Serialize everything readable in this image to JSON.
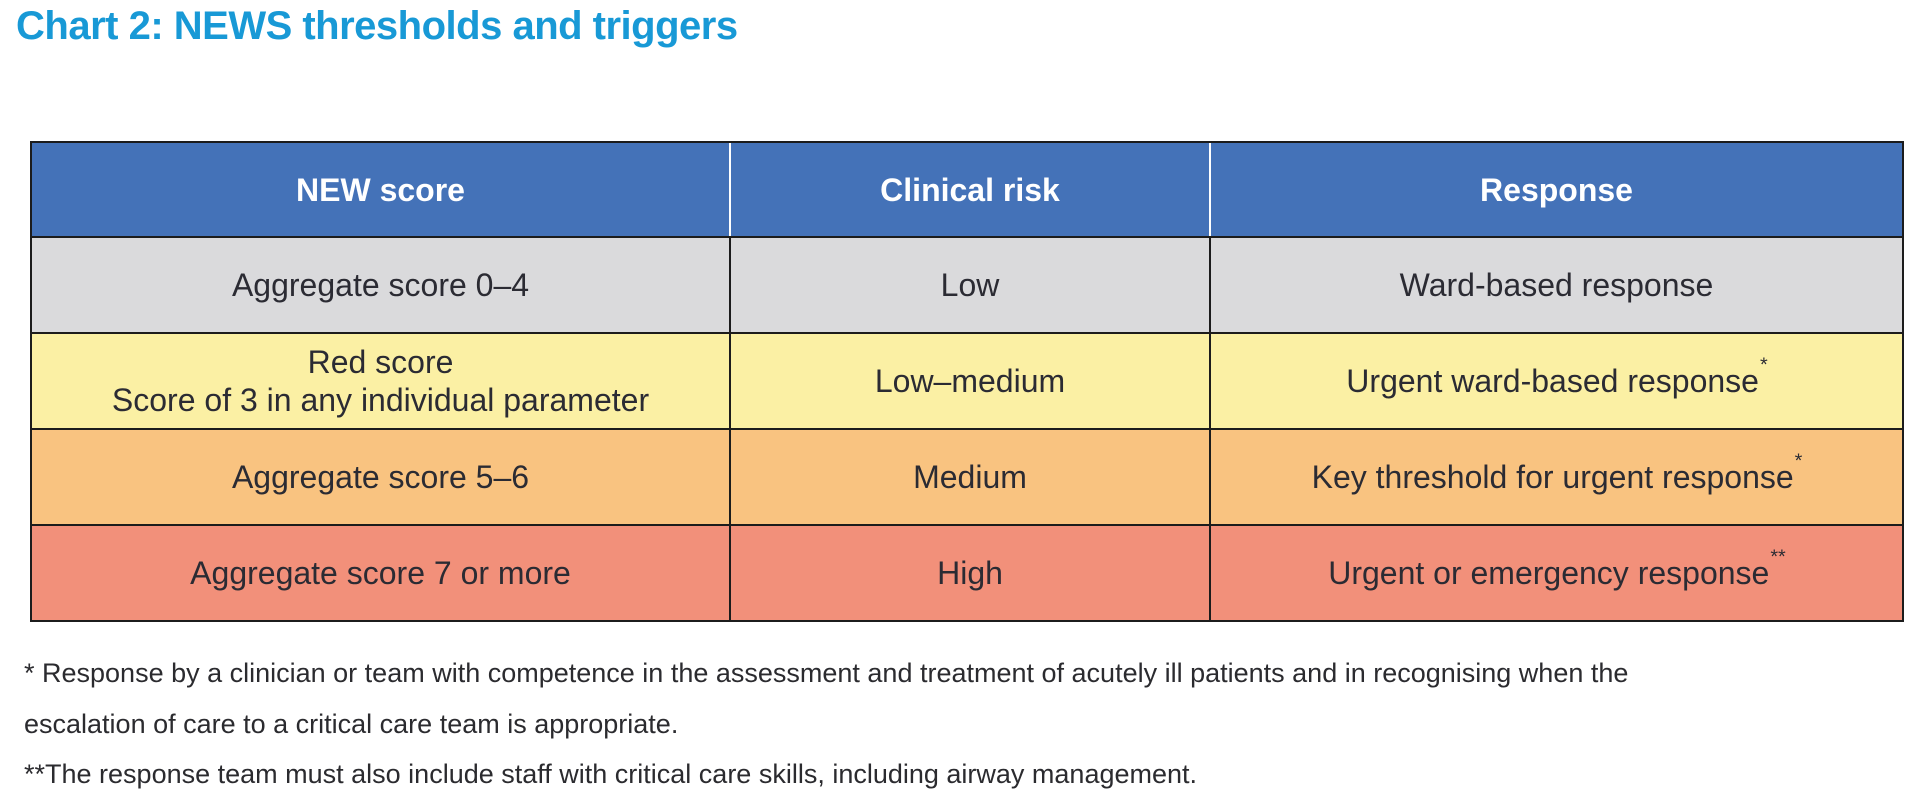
{
  "page": {
    "title": "Chart 2: NEWS thresholds and triggers"
  },
  "colors": {
    "title_blue": "#1899D6",
    "header_blue": "#4472B8",
    "header_text": "#FFFFFF",
    "row_low_gray": "#DADADC",
    "row_low_medium_yellow": "#FBF0A4",
    "row_medium_orange": "#F9C380",
    "row_high_red": "#F2907A",
    "body_text": "#2B2B33",
    "border": "#1C1C1C"
  },
  "table": {
    "headers": [
      "NEW score",
      "Clinical risk",
      "Response"
    ],
    "rows": [
      {
        "score_line1": "Aggregate score 0–4",
        "score_line2": "",
        "risk": "Low",
        "response": "Ward-based response",
        "response_sup": ""
      },
      {
        "score_line1": "Red score",
        "score_line2": "Score of 3 in any individual parameter",
        "risk": "Low–medium",
        "response": "Urgent ward-based response",
        "response_sup": "*"
      },
      {
        "score_line1": "Aggregate score 5–6",
        "score_line2": "",
        "risk": "Medium",
        "response": "Key threshold for urgent response",
        "response_sup": "*"
      },
      {
        "score_line1": "Aggregate score 7 or more",
        "score_line2": "",
        "risk": "High",
        "response": "Urgent or emergency response",
        "response_sup": "**"
      }
    ]
  },
  "footnotes": {
    "line1": "* Response by a clinician or team with competence in the assessment and treatment of acutely ill patients and in recognising when the",
    "line2": "escalation of care to a critical care team is appropriate.",
    "line3": "**The response team must also include staff with critical care skills, including airway management."
  }
}
